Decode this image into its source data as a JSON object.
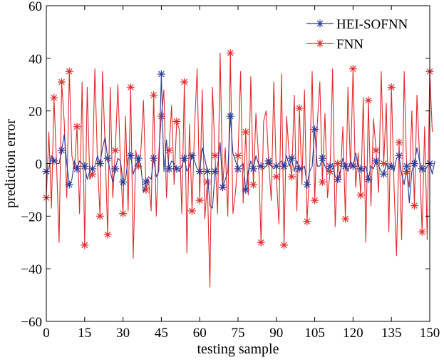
{
  "chart_data": {
    "type": "line",
    "title": "",
    "xlabel": "testing sample",
    "ylabel": "prediction error",
    "xlim": [
      0,
      150
    ],
    "ylim": [
      -60,
      60
    ],
    "xticks": [
      0,
      15,
      30,
      45,
      60,
      75,
      90,
      105,
      120,
      135,
      150
    ],
    "xtick_labels": [
      "0",
      "15",
      "30",
      "45",
      "60",
      "75",
      "90",
      "105",
      "120",
      "135",
      "150"
    ],
    "yticks": [
      -60,
      -40,
      -20,
      0,
      20,
      40,
      60
    ],
    "ytick_labels": [
      "−60",
      "−40",
      "−20",
      "0",
      "20",
      "40",
      "60"
    ],
    "grid": false,
    "legend_position": "top-right",
    "marker": "asterisk",
    "series": [
      {
        "name": "HEI-SOFNN",
        "color": "#2b3a98",
        "values": [
          -3,
          -2,
          3,
          1,
          0,
          0,
          5,
          11,
          0,
          -8,
          -6,
          1,
          -2,
          1,
          0,
          -1,
          -6,
          -3,
          -2,
          -1,
          3,
          0,
          6,
          10,
          2,
          -3,
          -7,
          -2,
          2,
          1,
          -7,
          -6,
          2,
          3,
          -4,
          -1,
          2,
          -1,
          -11,
          -7,
          -5,
          -6,
          2,
          -5,
          -3,
          34,
          -3,
          9,
          -2,
          1,
          0,
          -2,
          -3,
          -1,
          2,
          -3,
          -1,
          3,
          1,
          -2,
          -3,
          6,
          2,
          -3,
          -16,
          -17,
          -3,
          -1,
          8,
          -9,
          -6,
          -3,
          18,
          4,
          1,
          -2,
          -1,
          0,
          -10,
          -3,
          1,
          -2,
          3,
          0,
          -1,
          -2,
          -1,
          1,
          -1,
          -2,
          -1,
          0,
          1,
          -1,
          3,
          -1,
          2,
          -3,
          1,
          -2,
          -2,
          -1,
          -8,
          -3,
          -1,
          13,
          -1,
          -1,
          2,
          -1,
          -3,
          -1,
          0,
          -5,
          -6,
          -3,
          2,
          -1,
          -3,
          1,
          -1,
          4,
          -1,
          -2,
          -3,
          -1,
          -6,
          -1,
          -2,
          1,
          -1,
          -3,
          -4,
          0,
          -2,
          -1,
          -3,
          2,
          3,
          -4,
          -8,
          -1,
          -15,
          -3,
          0,
          6,
          1,
          -2,
          -3,
          -1,
          0,
          -4,
          1
        ]
      },
      {
        "name": "FNN",
        "color": "#e12a2c",
        "values": [
          -13,
          12,
          -17,
          25,
          0,
          -30,
          31,
          16,
          -13,
          35,
          3,
          -2,
          14,
          -19,
          31,
          -31,
          29,
          -6,
          -4,
          36,
          1,
          -20,
          35,
          6,
          -27,
          29,
          -13,
          5,
          30,
          0,
          -19,
          18,
          -18,
          29,
          -36,
          5,
          -1,
          5,
          24,
          -10,
          -6,
          -18,
          26,
          -20,
          4,
          18,
          28,
          -13,
          5,
          22,
          -8,
          16,
          13,
          -19,
          31,
          -34,
          15,
          -18,
          14,
          36,
          -14,
          28,
          -21,
          -7,
          -47,
          29,
          3,
          -19,
          42,
          -9,
          6,
          -20,
          42,
          -19,
          -11,
          3,
          35,
          -15,
          12,
          -12,
          33,
          -8,
          19,
          3,
          -30,
          16,
          20,
          0,
          -14,
          31,
          -5,
          -23,
          34,
          -31,
          18,
          3,
          -5,
          26,
          -18,
          21,
          -8,
          28,
          -22,
          -2,
          35,
          -14,
          15,
          31,
          -7,
          19,
          -13,
          -3,
          36,
          -24,
          0,
          -6,
          14,
          -21,
          29,
          -2,
          36,
          -9,
          4,
          -12,
          25,
          -30,
          24,
          -16,
          17,
          5,
          -11,
          35,
          0,
          23,
          -26,
          29,
          -8,
          -35,
          8,
          -29,
          35,
          -3,
          -9,
          20,
          -16,
          26,
          3,
          -26,
          14,
          -29,
          35,
          12
        ]
      }
    ]
  }
}
